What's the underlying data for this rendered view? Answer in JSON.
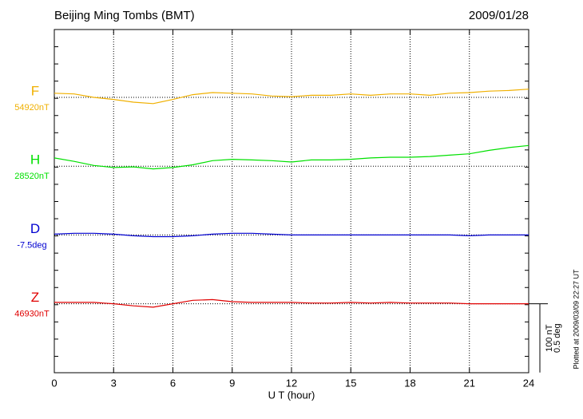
{
  "chart_data": {
    "type": "line",
    "title": "Beijing Ming Tombs (BMT)",
    "date": "2009/01/28",
    "x_label": "U T (hour)",
    "plotted_note": "Plotted at 2009/03/09 22:27 UT",
    "x": [
      0,
      1,
      2,
      3,
      4,
      5,
      6,
      7,
      8,
      9,
      10,
      11,
      12,
      13,
      14,
      15,
      16,
      17,
      18,
      19,
      20,
      21,
      22,
      23,
      24
    ],
    "xlim": [
      0,
      24
    ],
    "xticks": [
      0,
      3,
      6,
      9,
      12,
      15,
      18,
      21,
      24
    ],
    "grid": true,
    "scale_bar": [
      {
        "value": 100,
        "label": "100 nT"
      },
      {
        "value": 0.5,
        "label": "0.5 deg"
      }
    ],
    "series": [
      {
        "name": "F",
        "color": "#f0b000",
        "baseline": 54920,
        "baseline_label": "54920nT",
        "values": [
          54926,
          54925,
          54920,
          54917,
          54913,
          54911,
          54917,
          54924,
          54927,
          54926,
          54925,
          54922,
          54921,
          54923,
          54923,
          54925,
          54923,
          54925,
          54925,
          54923,
          54926,
          54927,
          54929,
          54930,
          54932
        ]
      },
      {
        "name": "H",
        "color": "#00e000",
        "baseline": 28520,
        "baseline_label": "28520nT",
        "values": [
          28532,
          28527,
          28521,
          28518,
          28519,
          28516,
          28518,
          28522,
          28528,
          28530,
          28529,
          28528,
          28526,
          28529,
          28529,
          28530,
          28532,
          28533,
          28533,
          28534,
          28536,
          28538,
          28543,
          28547,
          28550
        ]
      },
      {
        "name": "D",
        "color": "#0000d0",
        "baseline": -7.5,
        "baseline_label": "-7.5deg",
        "values": [
          -7.494,
          -7.488,
          -7.488,
          -7.494,
          -7.506,
          -7.512,
          -7.512,
          -7.506,
          -7.494,
          -7.488,
          -7.488,
          -7.494,
          -7.5,
          -7.5,
          -7.5,
          -7.5,
          -7.5,
          -7.5,
          -7.5,
          -7.5,
          -7.5,
          -7.506,
          -7.5,
          -7.5,
          -7.5
        ]
      },
      {
        "name": "Z",
        "color": "#e00000",
        "baseline": 46930,
        "baseline_label": "46930nT",
        "values": [
          46932,
          46932,
          46932,
          46930,
          46927,
          46925,
          46930,
          46935,
          46936,
          46933,
          46932,
          46932,
          46932,
          46931,
          46931,
          46932,
          46931,
          46932,
          46931,
          46931,
          46931,
          46930,
          46930,
          46930,
          46930
        ]
      }
    ]
  }
}
